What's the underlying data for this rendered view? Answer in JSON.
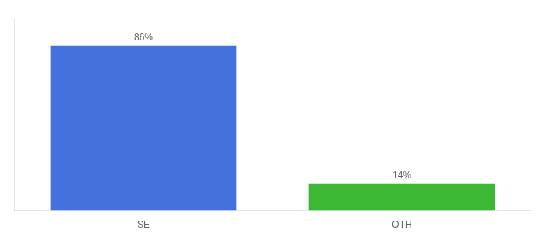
{
  "chart_data": {
    "type": "bar",
    "categories": [
      "SE",
      "OTH"
    ],
    "values": [
      86,
      14
    ],
    "value_labels": [
      "86%",
      "14%"
    ],
    "colors": [
      "#4472dd",
      "#3cb834"
    ],
    "ylim": [
      0,
      100
    ],
    "grid": false,
    "data_labels": true,
    "tick_labels": "x"
  }
}
